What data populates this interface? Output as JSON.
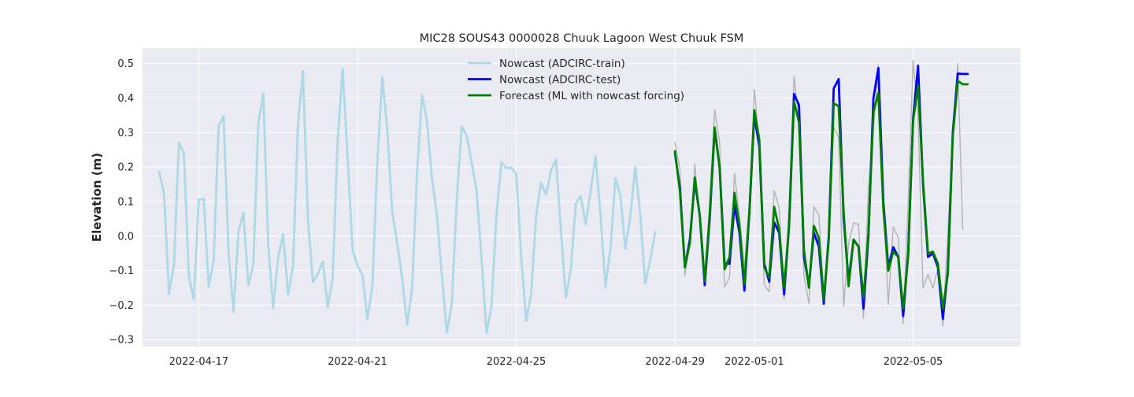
{
  "chart_data": {
    "type": "line",
    "title": "MIC28 SOUS43 0000028 Chuuk Lagoon West Chuuk FSM",
    "xlabel": "",
    "ylabel": "Elevation (m)",
    "xlim": [
      "2022-04-15T14:00",
      "2022-05-07T17:00"
    ],
    "ylim": [
      -0.32,
      0.545
    ],
    "x_ticks": [
      "2022-04-17",
      "2022-04-21",
      "2022-04-25",
      "2022-04-29",
      "2022-05-01",
      "2022-05-05"
    ],
    "y_ticks": [
      -0.3,
      -0.2,
      -0.1,
      0.0,
      0.1,
      0.2,
      0.3,
      0.4,
      0.5
    ],
    "y_tick_labels": [
      "−0.3",
      "−0.2",
      "−0.1",
      "0.0",
      "0.1",
      "0.2",
      "0.3",
      "0.4",
      "0.5"
    ],
    "grid": true,
    "legend_position": "upper-center",
    "background": "#eaeaf2",
    "series": [
      {
        "name": "Nowcast (ADCIRC-train)",
        "color": "#add8e6",
        "width": 2.8,
        "in_legend": true,
        "x": [
          "2022-04-16T00:00",
          "2022-04-16T03:00",
          "2022-04-16T06:00",
          "2022-04-16T09:00",
          "2022-04-16T12:00",
          "2022-04-16T15:00",
          "2022-04-16T18:00",
          "2022-04-16T21:00",
          "2022-04-17T00:00",
          "2022-04-17T03:00",
          "2022-04-17T06:00",
          "2022-04-17T09:00",
          "2022-04-17T12:00",
          "2022-04-17T15:00",
          "2022-04-17T18:00",
          "2022-04-17T21:00",
          "2022-04-18T00:00",
          "2022-04-18T03:00",
          "2022-04-18T06:00",
          "2022-04-18T09:00",
          "2022-04-18T12:00",
          "2022-04-18T15:00",
          "2022-04-18T18:00",
          "2022-04-18T21:00",
          "2022-04-19T00:00",
          "2022-04-19T03:00",
          "2022-04-19T06:00",
          "2022-04-19T09:00",
          "2022-04-19T12:00",
          "2022-04-19T15:00",
          "2022-04-19T18:00",
          "2022-04-19T21:00",
          "2022-04-20T00:00",
          "2022-04-20T03:00",
          "2022-04-20T06:00",
          "2022-04-20T09:00",
          "2022-04-20T12:00",
          "2022-04-20T15:00",
          "2022-04-20T18:00",
          "2022-04-20T21:00",
          "2022-04-21T00:00",
          "2022-04-21T03:00",
          "2022-04-21T06:00",
          "2022-04-21T09:00",
          "2022-04-21T12:00",
          "2022-04-21T15:00",
          "2022-04-21T18:00",
          "2022-04-21T21:00",
          "2022-04-22T00:00",
          "2022-04-22T03:00",
          "2022-04-22T06:00",
          "2022-04-22T09:00",
          "2022-04-22T12:00",
          "2022-04-22T15:00",
          "2022-04-22T18:00",
          "2022-04-22T21:00",
          "2022-04-23T00:00",
          "2022-04-23T03:00",
          "2022-04-23T06:00",
          "2022-04-23T09:00",
          "2022-04-23T12:00",
          "2022-04-23T15:00",
          "2022-04-23T18:00",
          "2022-04-23T21:00",
          "2022-04-24T00:00",
          "2022-04-24T03:00",
          "2022-04-24T06:00",
          "2022-04-24T09:00",
          "2022-04-24T12:00",
          "2022-04-24T15:00",
          "2022-04-24T18:00",
          "2022-04-24T21:00",
          "2022-04-25T00:00",
          "2022-04-25T03:00",
          "2022-04-25T06:00",
          "2022-04-25T09:00",
          "2022-04-25T12:00",
          "2022-04-25T15:00",
          "2022-04-25T18:00",
          "2022-04-25T21:00",
          "2022-04-26T00:00",
          "2022-04-26T03:00",
          "2022-04-26T06:00",
          "2022-04-26T09:00",
          "2022-04-26T12:00",
          "2022-04-26T15:00",
          "2022-04-26T18:00",
          "2022-04-26T21:00",
          "2022-04-27T00:00",
          "2022-04-27T03:00",
          "2022-04-27T06:00",
          "2022-04-27T09:00",
          "2022-04-27T12:00",
          "2022-04-27T15:00",
          "2022-04-27T18:00",
          "2022-04-27T21:00",
          "2022-04-28T00:00",
          "2022-04-28T03:00",
          "2022-04-28T06:00",
          "2022-04-28T09:00",
          "2022-04-28T12:00"
        ],
        "y": [
          0.186,
          0.124,
          -0.167,
          -0.082,
          0.27,
          0.241,
          -0.118,
          -0.183,
          0.105,
          0.108,
          -0.146,
          -0.072,
          0.319,
          0.348,
          -0.044,
          -0.219,
          0.013,
          0.068,
          -0.143,
          -0.082,
          0.327,
          0.414,
          -0.024,
          -0.209,
          -0.062,
          0.006,
          -0.169,
          -0.086,
          0.325,
          0.478,
          0.051,
          -0.132,
          -0.11,
          -0.074,
          -0.206,
          -0.121,
          0.277,
          0.485,
          0.227,
          -0.04,
          -0.085,
          -0.113,
          -0.242,
          -0.143,
          0.22,
          0.46,
          0.307,
          0.07,
          -0.02,
          -0.123,
          -0.257,
          -0.151,
          0.182,
          0.409,
          0.333,
          0.169,
          0.062,
          -0.115,
          -0.28,
          -0.196,
          0.103,
          0.318,
          0.292,
          0.212,
          0.132,
          -0.065,
          -0.281,
          -0.204,
          0.061,
          0.214,
          0.197,
          0.198,
          0.18,
          -0.061,
          -0.246,
          -0.166,
          0.06,
          0.155,
          0.121,
          0.19,
          0.222,
          0.015,
          -0.178,
          -0.094,
          0.094,
          0.117,
          0.035,
          0.131,
          0.232,
          0.061,
          -0.147,
          -0.035,
          0.168,
          0.118,
          -0.036,
          0.057,
          0.2,
          0.063,
          -0.137,
          -0.071,
          0.012
        ]
      },
      {
        "name": "",
        "color": "#b3b3b3",
        "width": 1.4,
        "in_legend": false,
        "x": [
          "2022-04-29T00:00",
          "2022-04-29T03:00",
          "2022-04-29T06:00",
          "2022-04-29T09:00",
          "2022-04-29T12:00",
          "2022-04-29T15:00",
          "2022-04-29T18:00",
          "2022-04-29T21:00",
          "2022-04-30T00:00",
          "2022-04-30T03:00",
          "2022-04-30T06:00",
          "2022-04-30T09:00",
          "2022-04-30T12:00",
          "2022-04-30T15:00",
          "2022-04-30T18:00",
          "2022-04-30T21:00",
          "2022-05-01T00:00",
          "2022-05-01T03:00",
          "2022-05-01T06:00",
          "2022-05-01T09:00",
          "2022-05-01T12:00",
          "2022-05-01T15:00",
          "2022-05-01T18:00",
          "2022-05-01T21:00",
          "2022-05-02T00:00",
          "2022-05-02T03:00",
          "2022-05-02T06:00",
          "2022-05-02T09:00",
          "2022-05-02T12:00",
          "2022-05-02T15:00",
          "2022-05-02T18:00",
          "2022-05-02T21:00",
          "2022-05-03T00:00",
          "2022-05-03T03:00",
          "2022-05-03T06:00",
          "2022-05-03T09:00",
          "2022-05-03T12:00",
          "2022-05-03T15:00",
          "2022-05-03T18:00",
          "2022-05-03T21:00",
          "2022-05-04T00:00",
          "2022-05-04T03:00",
          "2022-05-04T06:00",
          "2022-05-04T09:00",
          "2022-05-04T12:00",
          "2022-05-04T15:00",
          "2022-05-04T18:00",
          "2022-05-04T21:00",
          "2022-05-05T00:00",
          "2022-05-05T03:00",
          "2022-05-05T06:00",
          "2022-05-05T09:00",
          "2022-05-05T12:00",
          "2022-05-05T15:00",
          "2022-05-05T18:00",
          "2022-05-05T21:00",
          "2022-05-06T00:00",
          "2022-05-06T03:00",
          "2022-05-06T06:00"
        ],
        "y": [
          0.272,
          0.195,
          -0.114,
          -0.02,
          0.21,
          0.04,
          -0.132,
          0.1,
          0.366,
          0.272,
          -0.147,
          -0.12,
          0.181,
          0.06,
          -0.091,
          0.097,
          0.425,
          0.265,
          -0.142,
          -0.161,
          0.132,
          0.082,
          -0.183,
          0.085,
          0.463,
          0.335,
          -0.114,
          -0.195,
          0.085,
          0.063,
          -0.172,
          0.017,
          0.316,
          0.286,
          -0.203,
          -0.022,
          0.038,
          0.034,
          -0.238,
          0.142,
          0.308,
          0.496,
          0.098,
          -0.198,
          0.027,
          -0.004,
          -0.253,
          0.1,
          0.509,
          0.342,
          -0.15,
          -0.111,
          -0.15,
          -0.093,
          -0.261,
          0.006,
          0.3,
          0.5,
          0.02
        ]
      },
      {
        "name": "Nowcast (ADCIRC-test)",
        "color": "#0000ff",
        "width": 2.8,
        "in_legend": true,
        "x": [
          "2022-04-29T00:00",
          "2022-04-29T03:00",
          "2022-04-29T06:00",
          "2022-04-29T09:00",
          "2022-04-29T12:00",
          "2022-04-29T15:00",
          "2022-04-29T18:00",
          "2022-04-29T21:00",
          "2022-04-30T00:00",
          "2022-04-30T03:00",
          "2022-04-30T06:00",
          "2022-04-30T09:00",
          "2022-04-30T12:00",
          "2022-04-30T15:00",
          "2022-04-30T18:00",
          "2022-04-30T21:00",
          "2022-05-01T00:00",
          "2022-05-01T03:00",
          "2022-05-01T06:00",
          "2022-05-01T09:00",
          "2022-05-01T12:00",
          "2022-05-01T15:00",
          "2022-05-01T18:00",
          "2022-05-01T21:00",
          "2022-05-02T00:00",
          "2022-05-02T03:00",
          "2022-05-02T06:00",
          "2022-05-02T09:00",
          "2022-05-02T12:00",
          "2022-05-02T15:00",
          "2022-05-02T18:00",
          "2022-05-02T21:00",
          "2022-05-03T00:00",
          "2022-05-03T03:00",
          "2022-05-03T06:00",
          "2022-05-03T09:00",
          "2022-05-03T12:00",
          "2022-05-03T15:00",
          "2022-05-03T18:00",
          "2022-05-03T21:00",
          "2022-05-04T00:00",
          "2022-05-04T03:00",
          "2022-05-04T06:00",
          "2022-05-04T09:00",
          "2022-05-04T12:00",
          "2022-05-04T15:00",
          "2022-05-04T18:00",
          "2022-05-04T21:00",
          "2022-05-05T00:00",
          "2022-05-05T03:00",
          "2022-05-05T06:00",
          "2022-05-05T09:00",
          "2022-05-05T12:00",
          "2022-05-05T15:00",
          "2022-05-05T18:00",
          "2022-05-05T21:00",
          "2022-05-06T00:00",
          "2022-05-06T03:00",
          "2022-05-06T06:00",
          "2022-05-06T09:00"
        ],
        "y": [
          0.24,
          0.14,
          -0.09,
          -0.01,
          0.16,
          0.06,
          -0.142,
          0.05,
          0.31,
          0.2,
          -0.08,
          -0.08,
          0.09,
          0.01,
          -0.158,
          0.07,
          0.35,
          0.26,
          -0.08,
          -0.132,
          0.04,
          0.01,
          -0.169,
          0.03,
          0.412,
          0.38,
          -0.06,
          -0.143,
          0.01,
          -0.03,
          -0.196,
          0.0,
          0.428,
          0.455,
          0.05,
          -0.13,
          -0.01,
          -0.03,
          -0.21,
          0.0,
          0.4,
          0.487,
          0.1,
          -0.09,
          -0.032,
          -0.06,
          -0.232,
          -0.05,
          0.34,
          0.494,
          0.15,
          -0.06,
          -0.05,
          -0.09,
          -0.24,
          -0.1,
          0.3,
          0.471,
          0.47,
          0.47
        ]
      },
      {
        "name": "Forecast (ML with nowcast forcing)",
        "color": "#008000",
        "width": 2.8,
        "in_legend": true,
        "x": [
          "2022-04-29T00:00",
          "2022-04-29T03:00",
          "2022-04-29T06:00",
          "2022-04-29T09:00",
          "2022-04-29T12:00",
          "2022-04-29T15:00",
          "2022-04-29T18:00",
          "2022-04-29T21:00",
          "2022-04-30T00:00",
          "2022-04-30T03:00",
          "2022-04-30T06:00",
          "2022-04-30T09:00",
          "2022-04-30T12:00",
          "2022-04-30T15:00",
          "2022-04-30T18:00",
          "2022-04-30T21:00",
          "2022-05-01T00:00",
          "2022-05-01T03:00",
          "2022-05-01T06:00",
          "2022-05-01T09:00",
          "2022-05-01T12:00",
          "2022-05-01T15:00",
          "2022-05-01T18:00",
          "2022-05-01T21:00",
          "2022-05-02T00:00",
          "2022-05-02T03:00",
          "2022-05-02T06:00",
          "2022-05-02T09:00",
          "2022-05-02T12:00",
          "2022-05-02T15:00",
          "2022-05-02T18:00",
          "2022-05-02T21:00",
          "2022-05-03T00:00",
          "2022-05-03T03:00",
          "2022-05-03T06:00",
          "2022-05-03T09:00",
          "2022-05-03T12:00",
          "2022-05-03T15:00",
          "2022-05-03T18:00",
          "2022-05-03T21:00",
          "2022-05-04T00:00",
          "2022-05-04T03:00",
          "2022-05-04T06:00",
          "2022-05-04T09:00",
          "2022-05-04T12:00",
          "2022-05-04T15:00",
          "2022-05-04T18:00",
          "2022-05-04T21:00",
          "2022-05-05T00:00",
          "2022-05-05T03:00",
          "2022-05-05T06:00",
          "2022-05-05T09:00",
          "2022-05-05T12:00",
          "2022-05-05T15:00",
          "2022-05-05T18:00",
          "2022-05-05T21:00",
          "2022-05-06T00:00",
          "2022-05-06T03:00",
          "2022-05-06T06:00",
          "2022-05-06T09:00"
        ],
        "y": [
          0.246,
          0.13,
          -0.09,
          -0.02,
          0.17,
          0.06,
          -0.13,
          0.06,
          0.315,
          0.2,
          -0.096,
          -0.06,
          0.126,
          0.03,
          -0.14,
          0.07,
          0.365,
          0.28,
          -0.09,
          -0.12,
          0.085,
          0.02,
          -0.15,
          0.03,
          0.39,
          0.33,
          -0.04,
          -0.15,
          0.03,
          -0.005,
          -0.185,
          -0.01,
          0.385,
          0.376,
          0.07,
          -0.145,
          -0.01,
          -0.03,
          -0.18,
          0.01,
          0.36,
          0.415,
          0.08,
          -0.1,
          -0.045,
          -0.06,
          -0.21,
          -0.06,
          0.335,
          0.435,
          0.16,
          -0.05,
          -0.045,
          -0.08,
          -0.21,
          -0.11,
          0.29,
          0.45,
          0.44,
          0.44
        ]
      }
    ]
  }
}
